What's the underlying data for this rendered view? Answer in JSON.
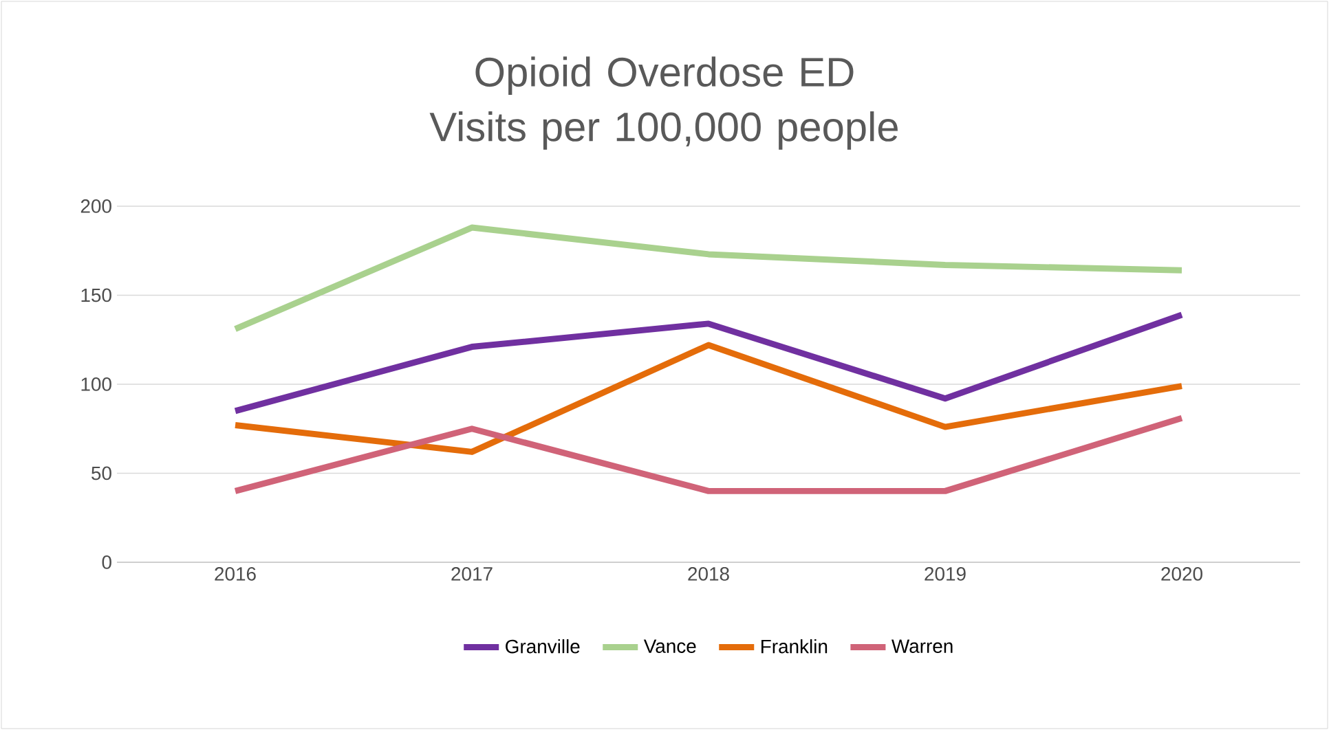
{
  "chart_data": {
    "type": "line",
    "title": "Opioid Overdose ED Visits per 100,000 people",
    "categories": [
      "2016",
      "2017",
      "2018",
      "2019",
      "2020"
    ],
    "series": [
      {
        "name": "Granville",
        "color": "#7030a0",
        "values": [
          85,
          121,
          134,
          92,
          139
        ]
      },
      {
        "name": "Vance",
        "color": "#a9d18e",
        "values": [
          131,
          188,
          173,
          167,
          164
        ]
      },
      {
        "name": "Franklin",
        "color": "#e46c0a",
        "values": [
          77,
          62,
          122,
          76,
          99
        ]
      },
      {
        "name": "Warren",
        "color": "#d06378",
        "values": [
          40,
          75,
          40,
          40,
          81
        ]
      }
    ],
    "ylim": [
      0,
      200
    ],
    "yticks": [
      0,
      50,
      100,
      150,
      200
    ],
    "grid": "y",
    "legend": "bottom",
    "marker": "none",
    "line_style": "solid"
  }
}
